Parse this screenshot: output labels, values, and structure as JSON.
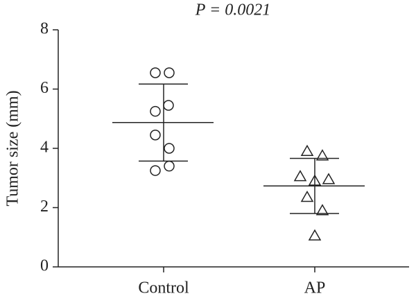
{
  "chart_data": {
    "type": "dot",
    "title": "P = 0.0021",
    "y_label": "Tumor size (mm)",
    "categories": [
      "Control",
      "AP"
    ],
    "markers": [
      "circle",
      "triangle"
    ],
    "points": [
      [
        6.55,
        6.55,
        5.25,
        5.45,
        4.45,
        4.0,
        3.25,
        3.4
      ],
      [
        3.9,
        3.75,
        3.05,
        2.9,
        2.95,
        2.35,
        1.9,
        1.05
      ]
    ],
    "means": [
      4.87,
      2.73
    ],
    "sd": [
      1.3,
      0.93
    ],
    "ylim": [
      0,
      8
    ],
    "yticks": [
      0,
      2,
      4,
      6,
      8
    ]
  }
}
